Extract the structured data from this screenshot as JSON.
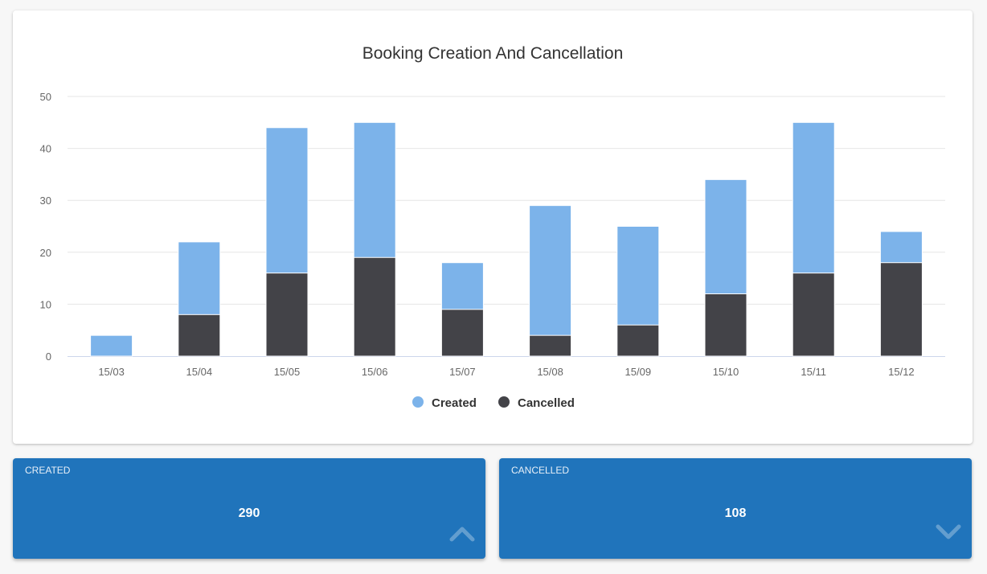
{
  "chart_data": {
    "type": "bar",
    "title": "Booking Creation And Cancellation",
    "categories": [
      "15/03",
      "15/04",
      "15/05",
      "15/06",
      "15/07",
      "15/08",
      "15/09",
      "15/10",
      "15/11",
      "15/12"
    ],
    "series": [
      {
        "name": "Created",
        "color": "#7cb3ea",
        "values": [
          4,
          22,
          44,
          45,
          18,
          29,
          25,
          34,
          45,
          24
        ]
      },
      {
        "name": "Cancelled",
        "color": "#434348",
        "values": [
          0,
          8,
          16,
          19,
          9,
          4,
          6,
          12,
          16,
          18
        ]
      }
    ],
    "yticks": [
      0,
      10,
      20,
      30,
      40,
      50
    ],
    "ylim": [
      0,
      50
    ],
    "grid": true,
    "legend": "bottom-center",
    "xlabel": "",
    "ylabel": ""
  },
  "stats": [
    {
      "label": "CREATED",
      "value": "290",
      "icon": "chevron-up-icon"
    },
    {
      "label": "CANCELLED",
      "value": "108",
      "icon": "chevron-down-icon"
    }
  ]
}
